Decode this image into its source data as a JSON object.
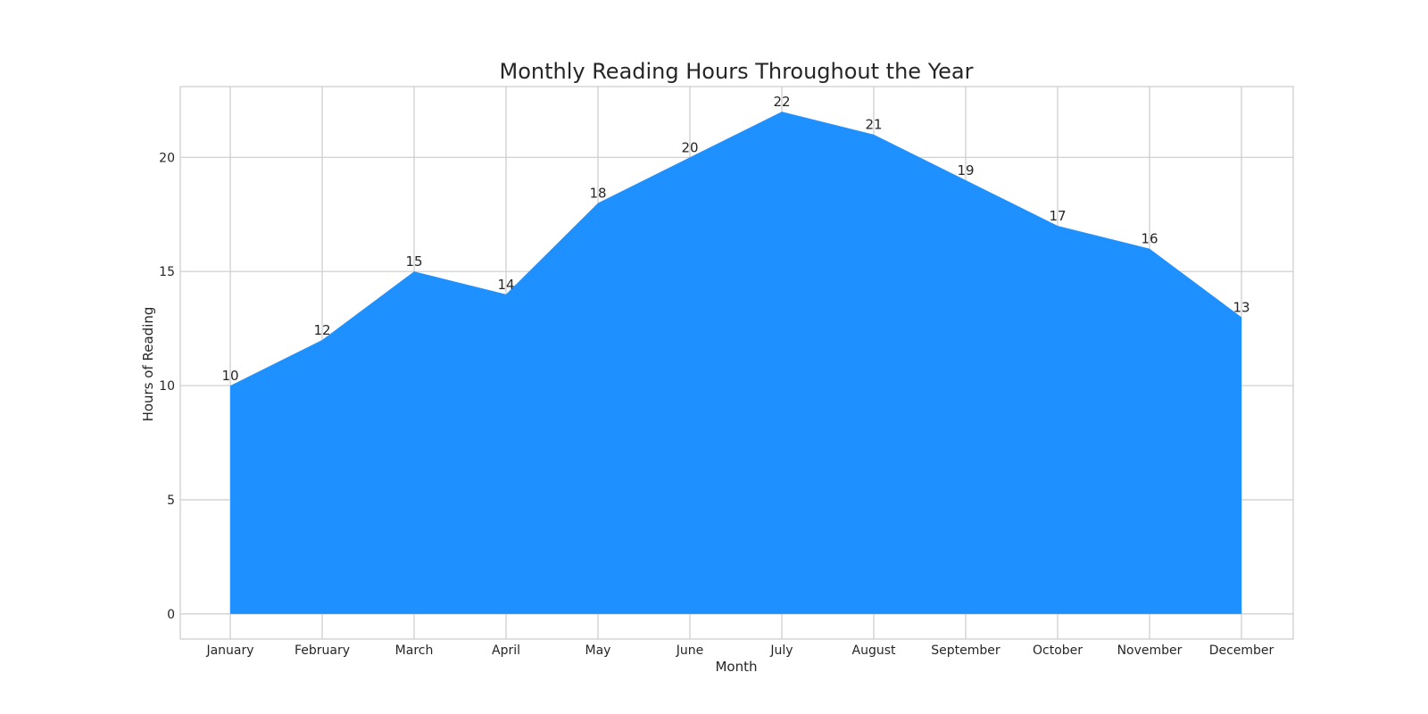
{
  "chart_data": {
    "type": "area",
    "title": "Monthly Reading Hours Throughout the Year",
    "xlabel": "Month",
    "ylabel": "Hours of Reading",
    "categories": [
      "January",
      "February",
      "March",
      "April",
      "May",
      "June",
      "July",
      "August",
      "September",
      "October",
      "November",
      "December"
    ],
    "values": [
      10,
      12,
      15,
      14,
      18,
      20,
      22,
      21,
      19,
      17,
      16,
      13
    ],
    "ylim": [
      -1.1,
      23.1
    ],
    "yticks": [
      0,
      5,
      10,
      15,
      20
    ],
    "grid": true,
    "legend": "none",
    "colors": {
      "fill": "#1e90ff",
      "grid": "#cccccc",
      "text": "#262626"
    }
  }
}
